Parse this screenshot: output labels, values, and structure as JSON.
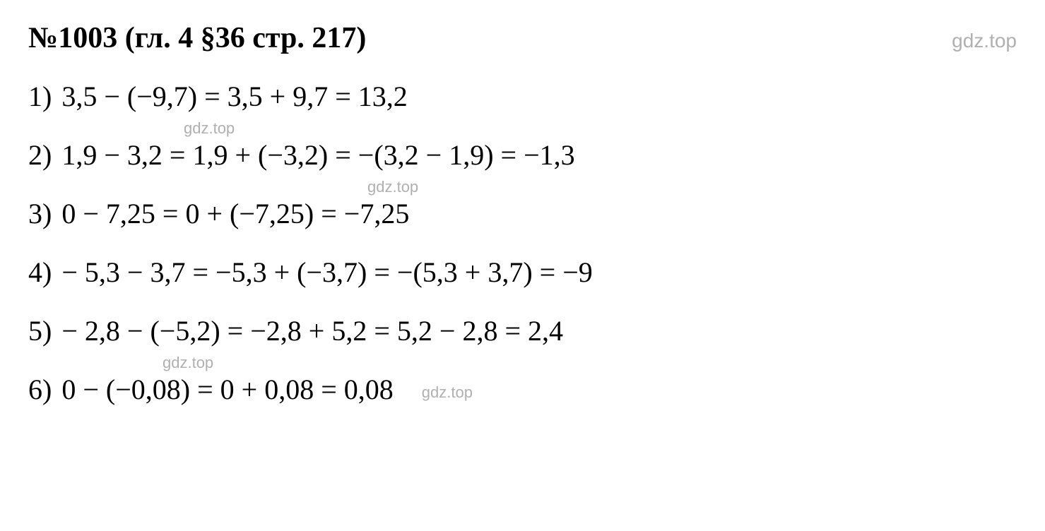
{
  "header": {
    "title_number": "№1003",
    "title_ref": " (гл. 4 §36 стр. 217)",
    "watermark": "gdz.top"
  },
  "equations": {
    "line1": {
      "num": "1)",
      "expr": " 3,5 − (−9,7) = 3,5 + 9,7 = 13,2"
    },
    "line2": {
      "num": "2)",
      "expr": " 1,9 − 3,2 = 1,9 + (−3,2) = −(3,2 − 1,9) = −1,3",
      "watermark": "gdz.top"
    },
    "line3": {
      "num": "3)",
      "expr": " 0 − 7,25 = 0 + (−7,25) = −7,25",
      "watermark": "gdz.top"
    },
    "line4": {
      "num": "4)",
      "expr": " − 5,3 − 3,7 = −5,3 + (−3,7) = −(5,3 + 3,7) = −9"
    },
    "line5": {
      "num": "5)",
      "expr": " − 2,8 − (−5,2) = −2,8 + 5,2 = 5,2 − 2,8 = 2,4"
    },
    "line6": {
      "num": "6)",
      "expr": " 0 − (−0,08) = 0 + 0,08 = 0,08",
      "watermark_top": "gdz.top",
      "watermark_right": "gdz.top"
    }
  },
  "colors": {
    "text": "#000000",
    "watermark": "#b0b0b0",
    "background": "#ffffff"
  },
  "typography": {
    "title_fontsize": 42,
    "equation_fontsize": 40,
    "watermark_fontsize": 28,
    "watermark_inline_fontsize": 22,
    "font_family": "Georgia, Times New Roman, serif"
  }
}
